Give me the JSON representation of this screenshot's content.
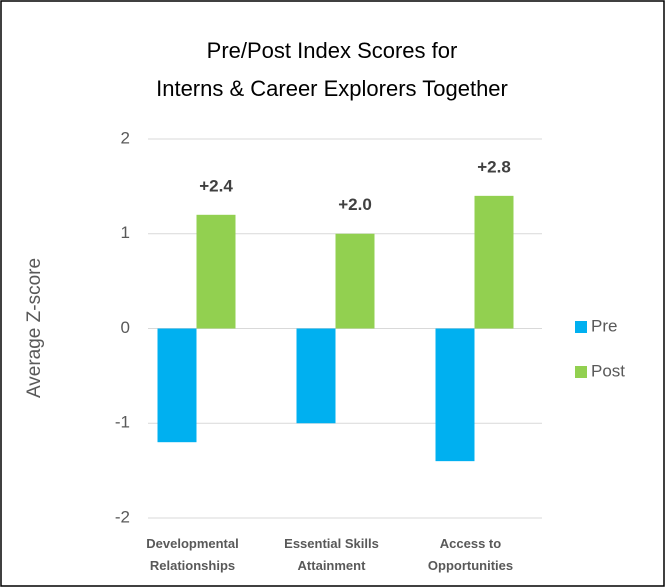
{
  "chart_data": {
    "type": "bar",
    "title": "Pre/Post Index Scores for\nInterns & Career Explorers Together",
    "y_label": "Average Z-score",
    "categories": [
      "Developmental\nRelationships",
      "Essential Skills\nAttainment",
      "Access to\nOpportunities"
    ],
    "series": [
      {
        "name": "Pre",
        "color": "#00b0f0",
        "values": [
          -1.2,
          -1.0,
          -1.4
        ]
      },
      {
        "name": "Post",
        "color": "#92d050",
        "values": [
          1.2,
          1.0,
          1.4
        ]
      }
    ],
    "annotations": [
      "+2.4",
      "+2.0",
      "+2.8"
    ],
    "ylim": [
      -2,
      2
    ],
    "yticks": [
      -2,
      -1,
      0,
      1,
      2
    ],
    "grid": true,
    "legend": "right"
  }
}
